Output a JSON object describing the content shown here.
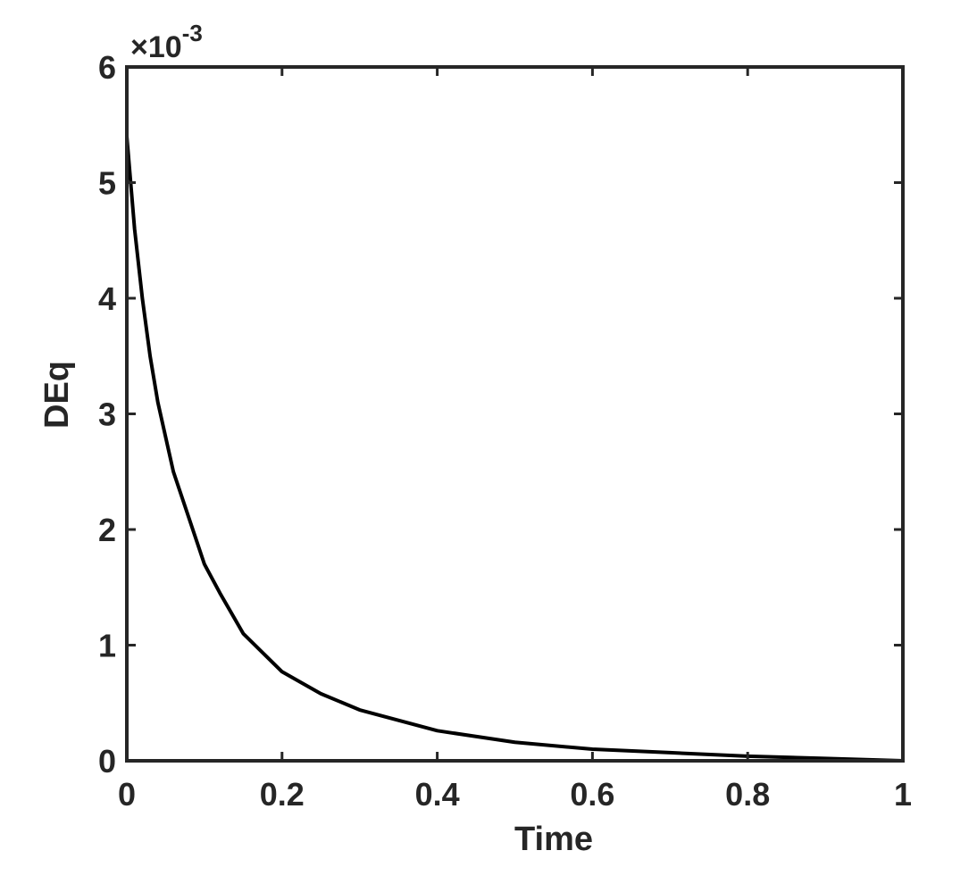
{
  "chart_data": {
    "type": "line",
    "x_label": "Time",
    "y_label": "DEq",
    "y_multiplier": {
      "base": "×10",
      "exponent": "-3"
    },
    "xlim": [
      0,
      1
    ],
    "ylim": [
      0,
      6
    ],
    "xticks": [
      0,
      0.2,
      0.4,
      0.6,
      0.8,
      1
    ],
    "yticks": [
      0,
      1,
      2,
      3,
      4,
      5,
      6
    ],
    "x": [
      0,
      0.005,
      0.01,
      0.02,
      0.03,
      0.04,
      0.05,
      0.06,
      0.08,
      0.1,
      0.12,
      0.15,
      0.2,
      0.25,
      0.3,
      0.4,
      0.5,
      0.6,
      0.7,
      0.8,
      0.9,
      1
    ],
    "series": [
      {
        "color": "#000000",
        "values": [
          5.4,
          5.0,
          4.6,
          4.0,
          3.5,
          3.1,
          2.8,
          2.5,
          2.1,
          1.7,
          1.45,
          1.1,
          0.77,
          0.58,
          0.44,
          0.26,
          0.16,
          0.1,
          0.07,
          0.04,
          0.02,
          0.0
        ]
      }
    ]
  }
}
